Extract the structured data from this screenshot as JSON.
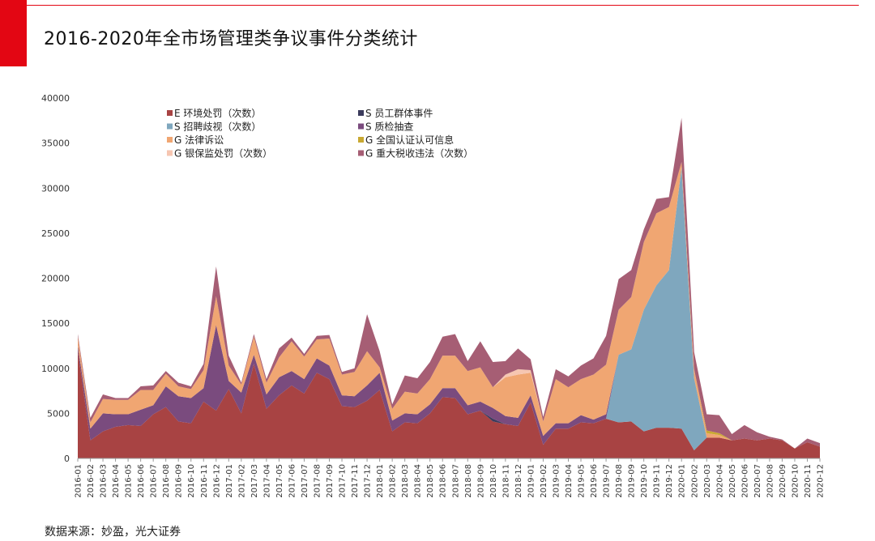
{
  "title": "2016-2020年全市场管理类争议事件分类统计",
  "source": "数据来源：妙盈，光大证券",
  "chart_data": {
    "type": "area",
    "stacked": true,
    "ylim": [
      0,
      40000
    ],
    "yticks": [
      0,
      5000,
      10000,
      15000,
      20000,
      25000,
      30000,
      35000,
      40000
    ],
    "x": [
      "2016-01",
      "2016-02",
      "2016-03",
      "2016-04",
      "2016-05",
      "2016-06",
      "2016-07",
      "2016-08",
      "2016-09",
      "2016-10",
      "2016-11",
      "2016-12",
      "2017-01",
      "2017-02",
      "2017-03",
      "2017-04",
      "2017-05",
      "2017-06",
      "2017-07",
      "2017-08",
      "2017-09",
      "2017-10",
      "2017-11",
      "2017-12",
      "2018-01",
      "2018-02",
      "2018-03",
      "2018-04",
      "2018-05",
      "2018-06",
      "2018-07",
      "2018-08",
      "2018-09",
      "2018-10",
      "2018-11",
      "2018-12",
      "2019-01",
      "2019-02",
      "2019-03",
      "2019-04",
      "2019-05",
      "2019-06",
      "2019-07",
      "2019-08",
      "2019-09",
      "2019-10",
      "2019-11",
      "2019-12",
      "2020-01",
      "2020-02",
      "2020-03",
      "2020-04",
      "2020-05",
      "2020-06",
      "2020-07",
      "2020-08",
      "2020-09",
      "2020-10",
      "2020-11",
      "2020-12"
    ],
    "legend_placement": "top-left inside",
    "series": [
      {
        "name": "E 环境处罚（次数）",
        "color": "#a84343",
        "values": [
          12000,
          2000,
          3000,
          3500,
          3700,
          3600,
          4900,
          5700,
          4100,
          3900,
          6300,
          5300,
          7700,
          5000,
          10500,
          5500,
          7000,
          8100,
          7200,
          9500,
          8800,
          5800,
          5700,
          6400,
          7600,
          3000,
          4000,
          3900,
          5000,
          6800,
          6700,
          4900,
          5300,
          4100,
          3800,
          3600,
          6200,
          1500,
          3300,
          3300,
          4000,
          3900,
          4400,
          4000,
          4100,
          3000,
          3400,
          3400,
          3300,
          900,
          2300,
          2300,
          2000,
          2200,
          2000,
          2200,
          2000,
          1100,
          1800,
          1300
        ]
      },
      {
        "name": "S 员工群体事件",
        "color": "#3b3b5c",
        "values": [
          0,
          0,
          0,
          0,
          0,
          0,
          0,
          0,
          0,
          0,
          0,
          0,
          0,
          0,
          0,
          0,
          0,
          0,
          0,
          0,
          0,
          0,
          0,
          0,
          0,
          0,
          0,
          0,
          0,
          0,
          0,
          0,
          0,
          300,
          0,
          0,
          0,
          0,
          0,
          0,
          0,
          0,
          0,
          0,
          0,
          0,
          0,
          0,
          0,
          0,
          0,
          0,
          0,
          0,
          0,
          0,
          0,
          0,
          0,
          0
        ]
      },
      {
        "name": "S 招聘歧视（次数）",
        "color": "#7fa7be",
        "values": [
          0,
          0,
          0,
          0,
          0,
          0,
          0,
          0,
          0,
          0,
          0,
          0,
          0,
          0,
          0,
          0,
          0,
          0,
          0,
          0,
          0,
          0,
          0,
          0,
          0,
          0,
          0,
          0,
          0,
          0,
          0,
          0,
          0,
          0,
          0,
          0,
          0,
          0,
          0,
          0,
          0,
          0,
          0,
          7500,
          8000,
          13500,
          15800,
          17500,
          29000,
          8000,
          0,
          0,
          0,
          0,
          0,
          0,
          0,
          0,
          0,
          0
        ]
      },
      {
        "name": "S 质检抽查",
        "color": "#7a4b7e",
        "values": [
          500,
          1300,
          2000,
          1400,
          1200,
          1800,
          1000,
          2300,
          2800,
          2800,
          1500,
          9500,
          900,
          2300,
          1000,
          1600,
          2000,
          1600,
          1600,
          1600,
          1500,
          1200,
          1200,
          1700,
          1900,
          1200,
          1000,
          1000,
          1000,
          1000,
          1100,
          1000,
          1000,
          1200,
          900,
          900,
          800,
          1000,
          600,
          600,
          800,
          400,
          500,
          0,
          0,
          0,
          0,
          0,
          0,
          0,
          0,
          0,
          0,
          0,
          0,
          0,
          0,
          0,
          0,
          0
        ]
      },
      {
        "name": "G 法律诉讼",
        "color": "#f0a672",
        "values": [
          1000,
          700,
          1600,
          1600,
          1600,
          2200,
          1700,
          1400,
          1100,
          1000,
          2000,
          3200,
          1700,
          900,
          2000,
          1300,
          2200,
          3300,
          2500,
          2100,
          3000,
          2300,
          2700,
          3800,
          600,
          1300,
          2400,
          2300,
          2800,
          3600,
          3600,
          3800,
          3800,
          2300,
          4300,
          4800,
          2500,
          1600,
          4900,
          4000,
          4000,
          5000,
          5500,
          5000,
          5800,
          7500,
          8000,
          7000,
          600,
          1000,
          500,
          300,
          0,
          0,
          0,
          0,
          0,
          0,
          0,
          0
        ]
      },
      {
        "name": "G 全国认证认可信息",
        "color": "#c9a932",
        "values": [
          0,
          0,
          0,
          0,
          0,
          0,
          0,
          0,
          0,
          0,
          0,
          0,
          0,
          0,
          0,
          0,
          0,
          0,
          0,
          0,
          0,
          0,
          0,
          0,
          0,
          0,
          0,
          0,
          0,
          0,
          0,
          0,
          0,
          0,
          0,
          0,
          0,
          0,
          0,
          0,
          0,
          0,
          0,
          0,
          0,
          0,
          0,
          0,
          0,
          0,
          300,
          200,
          0,
          0,
          0,
          0,
          0,
          0,
          0,
          0
        ]
      },
      {
        "name": "G 银保监处罚（次数）",
        "color": "#f6c6b1",
        "values": [
          0,
          0,
          0,
          0,
          0,
          0,
          0,
          0,
          0,
          0,
          0,
          0,
          0,
          0,
          0,
          0,
          0,
          0,
          0,
          0,
          0,
          0,
          0,
          0,
          0,
          0,
          0,
          0,
          0,
          0,
          0,
          0,
          0,
          0,
          300,
          600,
          300,
          0,
          0,
          0,
          0,
          0,
          0,
          0,
          0,
          0,
          0,
          0,
          0,
          0,
          0,
          0,
          0,
          0,
          0,
          0,
          0,
          0,
          0,
          0
        ]
      },
      {
        "name": "G 重大税收违法（次数）",
        "color": "#a65e74",
        "values": [
          300,
          500,
          500,
          200,
          200,
          400,
          500,
          300,
          400,
          300,
          700,
          3300,
          1100,
          200,
          300,
          400,
          1000,
          400,
          300,
          400,
          400,
          300,
          400,
          4100,
          1800,
          500,
          1800,
          1700,
          1900,
          2100,
          2400,
          1100,
          2900,
          2800,
          1500,
          2300,
          1200,
          500,
          1100,
          1200,
          1500,
          1800,
          3200,
          3400,
          3000,
          1400,
          1600,
          1100,
          4900,
          1900,
          1800,
          2000,
          700,
          1500,
          900,
          200,
          100,
          0,
          400,
          400
        ]
      }
    ]
  }
}
